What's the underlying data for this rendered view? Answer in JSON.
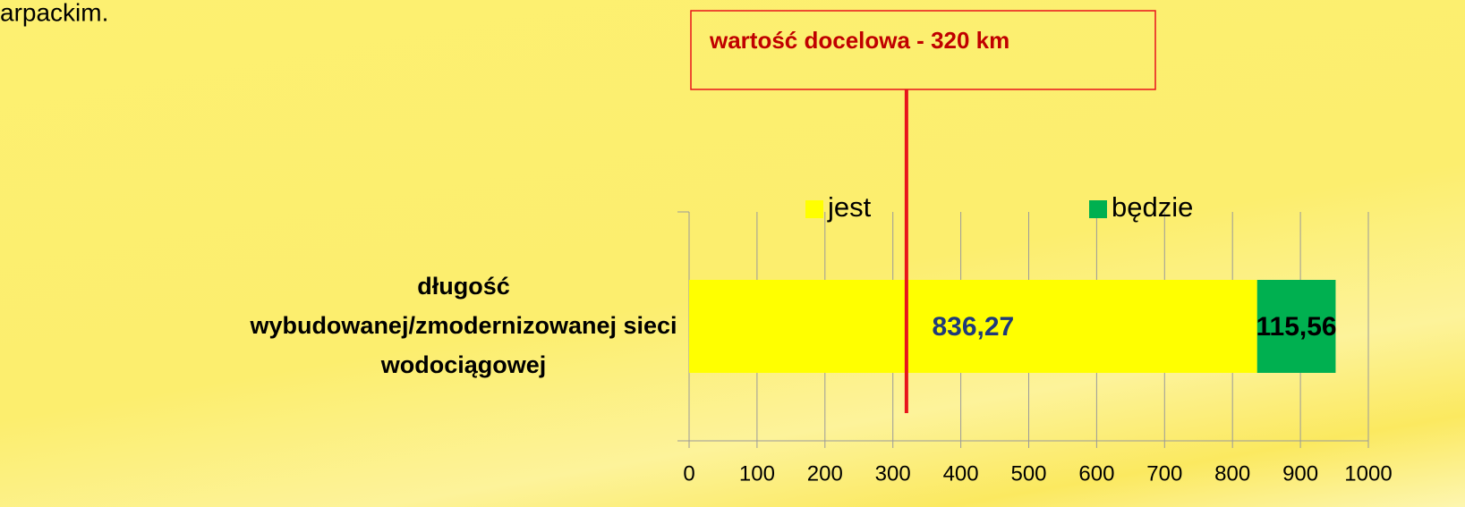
{
  "chart_data": {
    "type": "stacked_barh",
    "caption": "arpackim.",
    "categories": [
      "długość\nwybudowanej/zmodernizowanej sieci\nwodociągowej"
    ],
    "series": [
      {
        "name": "jest",
        "color": "#ffff00",
        "values": [
          836.27
        ],
        "value_labels": [
          "836,27"
        ],
        "label_color": "#1f3a7a"
      },
      {
        "name": "będzie",
        "color": "#00b050",
        "values": [
          115.56
        ],
        "value_labels": [
          "115,56"
        ],
        "label_color": "#000000"
      }
    ],
    "xlim": [
      0,
      1000
    ],
    "xticks": [
      0,
      100,
      200,
      300,
      400,
      500,
      600,
      700,
      800,
      900,
      1000
    ],
    "grid": true,
    "legend": "top",
    "target": 320,
    "target_label": "wartość docelowa - 320 km",
    "target_color": "#e8141b"
  }
}
